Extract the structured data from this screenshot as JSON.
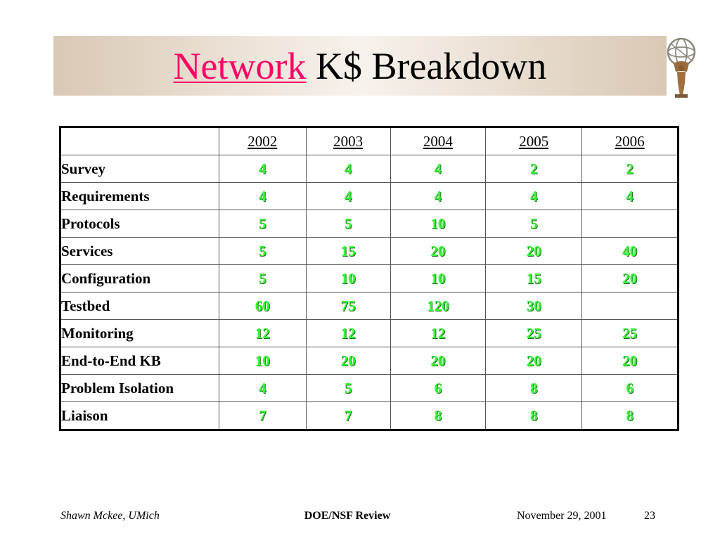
{
  "slide": {
    "title_highlight": "Network",
    "title_rest": " K$ Breakdown"
  },
  "table": {
    "headers": [
      "",
      "2002",
      "2003",
      "2004",
      "2005",
      "2006"
    ],
    "rows": [
      {
        "label": "Survey",
        "values": [
          "4",
          "4",
          "4",
          "2",
          "2"
        ]
      },
      {
        "label": "Requirements",
        "values": [
          "4",
          "4",
          "4",
          "4",
          "4"
        ]
      },
      {
        "label": "Protocols",
        "values": [
          "5",
          "5",
          "10",
          "5",
          ""
        ]
      },
      {
        "label": "Services",
        "values": [
          "5",
          "15",
          "20",
          "20",
          "40"
        ]
      },
      {
        "label": "Configuration",
        "values": [
          "5",
          "10",
          "10",
          "15",
          "20"
        ]
      },
      {
        "label": "Testbed",
        "values": [
          "60",
          "75",
          "120",
          "30",
          ""
        ]
      },
      {
        "label": "Monitoring",
        "values": [
          "12",
          "12",
          "12",
          "25",
          "25"
        ]
      },
      {
        "label": "End-to-End KB",
        "values": [
          "10",
          "20",
          "20",
          "20",
          "20"
        ]
      },
      {
        "label": "Problem Isolation",
        "values": [
          "4",
          "5",
          "6",
          "8",
          "6"
        ]
      },
      {
        "label": "Liaison",
        "values": [
          "7",
          "7",
          "8",
          "8",
          "8"
        ]
      }
    ]
  },
  "footer": {
    "author": "Shawn Mckee, UMich",
    "event": "DOE/NSF Review",
    "date": "November 29, 2001",
    "page": "23"
  },
  "icons": {
    "logo": "atlas-statue-icon"
  },
  "colors": {
    "title_highlight": "#ff0066",
    "value_text": "#33ff33",
    "banner": "#e8dccf"
  }
}
